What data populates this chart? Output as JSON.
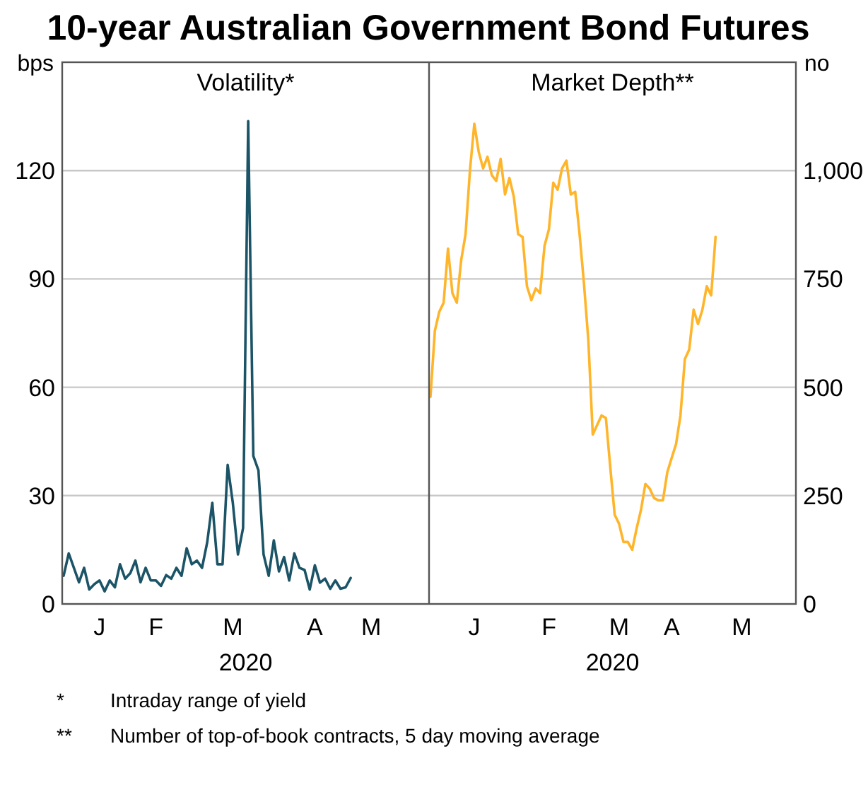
{
  "chart_data": [
    {
      "type": "line",
      "title": "10-year Australian Government Bond Futures",
      "subtitle": "Volatility*",
      "ylabel": "bps",
      "xlabel": "2020",
      "grid": "y",
      "categories": [
        null,
        null,
        null,
        null,
        null,
        null,
        null,
        "J",
        null,
        null,
        null,
        null,
        null,
        null,
        null,
        null,
        null,
        null,
        "F",
        null,
        null,
        null,
        null,
        null,
        null,
        null,
        null,
        null,
        null,
        null,
        null,
        null,
        null,
        "M",
        null,
        null,
        null,
        null,
        null,
        null,
        null,
        null,
        null,
        null,
        null,
        null,
        null,
        null,
        null,
        "A",
        null,
        null,
        null,
        null,
        null,
        null,
        null,
        null,
        null,
        null,
        "M",
        null,
        null,
        null,
        null,
        null,
        null,
        null,
        null,
        null,
        null,
        null
      ],
      "ylim": [
        0,
        150
      ],
      "yticks": [
        0,
        30,
        60,
        90,
        120
      ],
      "series": [
        {
          "color": "#1c5467",
          "values": [
            7.8,
            14,
            10,
            6,
            10,
            4,
            5.5,
            6.5,
            3.5,
            6.5,
            4.6,
            11,
            7,
            8.5,
            12,
            6,
            10,
            6.5,
            6.5,
            5,
            8,
            7,
            10,
            7.8,
            15.4,
            11,
            12,
            10,
            17,
            28,
            11,
            11,
            38.5,
            28,
            13.7,
            21,
            133.7,
            41,
            37,
            13.7,
            7.8,
            17.6,
            9,
            13,
            6.5,
            14,
            10,
            9.4,
            4,
            10.7,
            5.9,
            7,
            4.2,
            6.5,
            4.2,
            4.6,
            7.2,
            null,
            null,
            null,
            null,
            null,
            null,
            null,
            null,
            null,
            null,
            null,
            null,
            null,
            null,
            null
          ]
        }
      ]
    },
    {
      "type": "line",
      "subtitle": "Market Depth**",
      "y2label": "no",
      "xlabel": "2020",
      "grid": "y",
      "categories": [
        null,
        null,
        null,
        null,
        null,
        null,
        null,
        null,
        null,
        null,
        "J",
        null,
        null,
        null,
        null,
        null,
        null,
        null,
        null,
        null,
        null,
        null,
        null,
        null,
        null,
        null,
        null,
        "F",
        null,
        null,
        null,
        null,
        null,
        null,
        null,
        null,
        null,
        null,
        null,
        null,
        null,
        null,
        null,
        "M",
        null,
        null,
        null,
        null,
        null,
        null,
        null,
        null,
        null,
        null,
        null,
        "A",
        null,
        null,
        null,
        null,
        null,
        null,
        null,
        null,
        null,
        null,
        null,
        null,
        null,
        null,
        null,
        "M",
        null,
        null,
        null,
        null,
        null,
        null,
        null,
        null,
        null,
        null,
        null,
        null
      ],
      "y2lim": [
        0,
        1250
      ],
      "y2ticks": [
        0,
        250,
        500,
        750,
        {
          "value": 1000,
          "label": "1,000"
        }
      ],
      "annotations": [
        "*\tIntraday range of yield",
        "**\tNumber of top-of-book contracts, 5 day moving average"
      ],
      "series": [
        {
          "color": "#ffb52a",
          "axis": "y2",
          "values": [
            478,
            630,
            674,
            695,
            820,
            717,
            695,
            793,
            853,
            1000,
            1108,
            1043,
            1005,
            1032,
            989,
            976,
            1027,
            945,
            983,
            940,
            853,
            847,
            733,
            701,
            728,
            717,
            826,
            864,
            972,
            956,
            1005,
            1023,
            945,
            951,
            853,
            739,
            608,
            391,
            413,
            435,
            429,
            315,
            206,
            185,
            143,
            143,
            125,
            174,
            217,
            277,
            266,
            244,
            239,
            239,
            304,
            337,
            369,
            435,
            565,
            587,
            679,
            646,
            679,
            733,
            712,
            847,
            null,
            null,
            null,
            null,
            null,
            null,
            null,
            null,
            null,
            null,
            null,
            null,
            null,
            null,
            null,
            null,
            null,
            null
          ]
        }
      ]
    }
  ]
}
